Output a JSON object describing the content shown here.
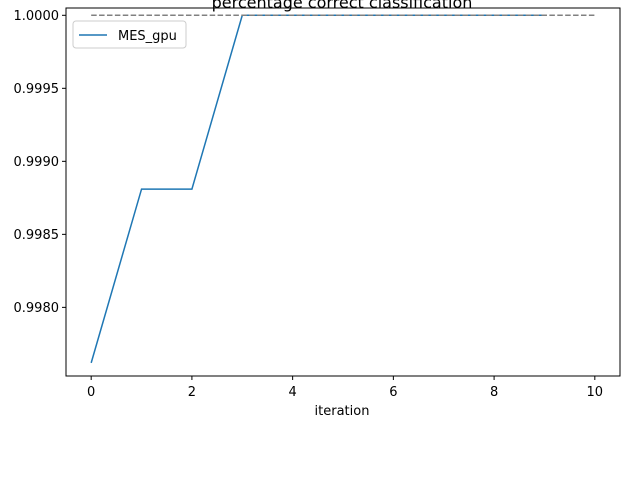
{
  "chart_data": {
    "type": "line",
    "title": "percentage correct classification",
    "xlabel": "iteration",
    "ylabel": "",
    "xlim": [
      -0.5,
      10.5
    ],
    "ylim": [
      0.99753,
      1.00005
    ],
    "x_ticks": [
      0,
      2,
      4,
      6,
      8,
      10
    ],
    "x_tick_labels": [
      "0",
      "2",
      "4",
      "6",
      "8",
      "10"
    ],
    "y_ticks": [
      0.998,
      0.9985,
      0.999,
      0.9995,
      1.0
    ],
    "y_tick_labels": [
      "0.9980",
      "0.9985",
      "0.9990",
      "0.9995",
      "1.0000"
    ],
    "grid": false,
    "legend_position": "top-left",
    "series": [
      {
        "name": "MES_gpu",
        "color": "#1f77b4",
        "style": "solid",
        "x": [
          0,
          1,
          2,
          3,
          4,
          5,
          6,
          7,
          8,
          9
        ],
        "y": [
          0.99762,
          0.99881,
          0.99881,
          1.0,
          1.0,
          1.0,
          1.0,
          1.0,
          1.0,
          1.0
        ]
      },
      {
        "color": "#808080",
        "style": "dashed",
        "x": [
          0,
          10
        ],
        "y": [
          1.0,
          1.0
        ]
      }
    ]
  }
}
